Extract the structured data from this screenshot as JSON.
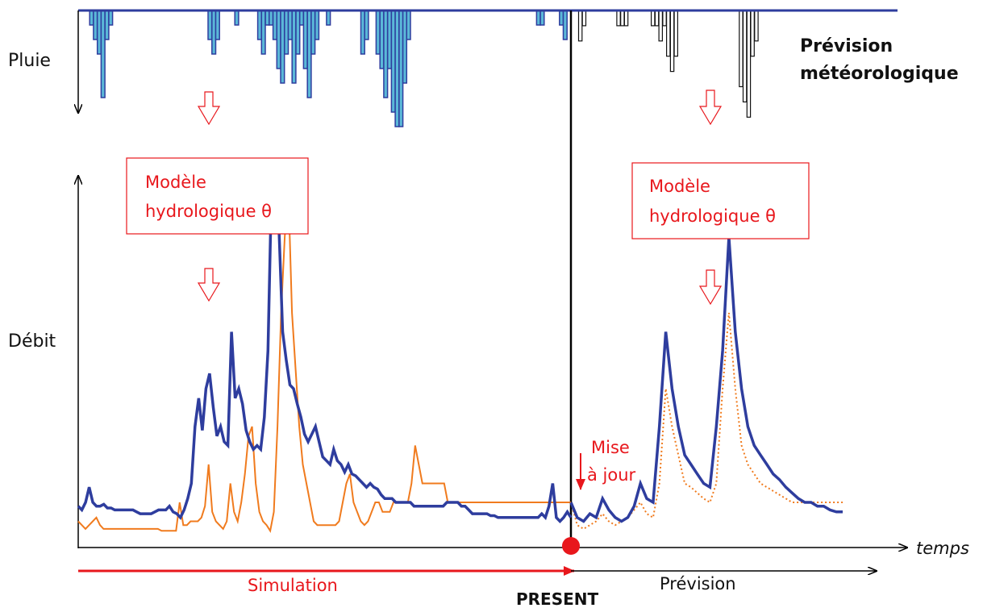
{
  "labels": {
    "pluie": "Pluie",
    "prevision_meteo_line1": "Prévision",
    "prevision_meteo_line2": "météorologique",
    "debit": "Débit",
    "modele_left_line1": "Modèle",
    "modele_left_line2": "hydrologique θ",
    "modele_right_line1": "Modèle",
    "modele_right_line2": "hydrologique θ",
    "mise_a_jour_line1": "Mise",
    "mise_a_jour_line2": "à jour",
    "temps": "temps",
    "simulation": "Simulation",
    "present": "PRESENT",
    "prevision": "Prévision"
  },
  "colors": {
    "observed": "#2e3d9e",
    "simulated": "#f07b1e",
    "rain_fill": "#5bb8d8",
    "rain_edge": "#2e3d9e",
    "red": "#e8171c",
    "axis": "#000000"
  },
  "chart_data": {
    "type": "line",
    "present_index": 128,
    "rain_observed": [
      0,
      0,
      0,
      1,
      2,
      3,
      6,
      2,
      1,
      0,
      0,
      0,
      0,
      0,
      0,
      0,
      0,
      0,
      0,
      0,
      0,
      0,
      0,
      0,
      0,
      0,
      0,
      0,
      0,
      0,
      0,
      0,
      0,
      0,
      2,
      3,
      2,
      0,
      0,
      0,
      0,
      1,
      0,
      0,
      0,
      0,
      0,
      2,
      3,
      1,
      1,
      2,
      4,
      5,
      3,
      2,
      5,
      3,
      1,
      4,
      6,
      3,
      2,
      0,
      0,
      1,
      0,
      0,
      0,
      0,
      0,
      0,
      0,
      0,
      3,
      2,
      0,
      0,
      3,
      4,
      6,
      4,
      7,
      8,
      8,
      5,
      2,
      0,
      0,
      0,
      0,
      0,
      0,
      0,
      0,
      0,
      0,
      0,
      0,
      0,
      0,
      0,
      0,
      0,
      0,
      0,
      0,
      0,
      0,
      0,
      0,
      0,
      0,
      0,
      0,
      0,
      0,
      0,
      0,
      0,
      1,
      1,
      0,
      0,
      0,
      0,
      1,
      2,
      0
    ],
    "rain_forecast": [
      0,
      0,
      2,
      1,
      0,
      0,
      0,
      0,
      0,
      0,
      0,
      0,
      1,
      1,
      1,
      0,
      0,
      0,
      0,
      0,
      0,
      1,
      1,
      2,
      1,
      3,
      4,
      3,
      0,
      0,
      0,
      0,
      0,
      0,
      0,
      0,
      0,
      0,
      0,
      0,
      0,
      0,
      0,
      0,
      5,
      6,
      7,
      3,
      2,
      0,
      0
    ],
    "observed": [
      18,
      16,
      20,
      28,
      20,
      18,
      18,
      19,
      17,
      17,
      16,
      16,
      16,
      16,
      16,
      16,
      15,
      14,
      14,
      14,
      14,
      15,
      16,
      16,
      16,
      18,
      15,
      14,
      12,
      16,
      22,
      30,
      60,
      75,
      58,
      80,
      88,
      70,
      55,
      60,
      52,
      50,
      110,
      75,
      80,
      72,
      58,
      52,
      48,
      50,
      48,
      65,
      100,
      190,
      190,
      165,
      110,
      95,
      82,
      80,
      72,
      65,
      56,
      52,
      56,
      60,
      52,
      44,
      42,
      40,
      48,
      42,
      40,
      36,
      40,
      35,
      34,
      32,
      30,
      28,
      30,
      28,
      27,
      24,
      22,
      22,
      22,
      20,
      20,
      20,
      20,
      20,
      18,
      18,
      18,
      18,
      18,
      18,
      18,
      18,
      18,
      20,
      20,
      20,
      20,
      18,
      18,
      16,
      14,
      14,
      14,
      14,
      14,
      13,
      13,
      12,
      12,
      12,
      12,
      12,
      12,
      12,
      12,
      12,
      12,
      12,
      12,
      14,
      12,
      18,
      30,
      12,
      10,
      12,
      15,
      12
    ],
    "simulated": [
      10,
      8,
      6,
      8,
      10,
      12,
      8,
      6,
      6,
      6,
      6,
      6,
      6,
      6,
      6,
      6,
      6,
      6,
      6,
      6,
      6,
      6,
      6,
      5,
      5,
      5,
      5,
      5,
      20,
      8,
      8,
      10,
      10,
      10,
      12,
      18,
      40,
      15,
      10,
      8,
      6,
      10,
      30,
      15,
      10,
      20,
      35,
      55,
      60,
      30,
      15,
      10,
      8,
      5,
      15,
      60,
      120,
      160,
      185,
      120,
      90,
      60,
      40,
      30,
      20,
      10,
      8,
      8,
      8,
      8,
      8,
      8,
      10,
      20,
      30,
      35,
      20,
      15,
      10,
      8,
      10,
      15,
      20,
      20,
      15,
      15,
      15,
      20,
      20,
      20,
      20,
      20,
      30,
      50,
      40,
      30,
      30,
      30,
      30,
      30,
      30,
      30,
      20,
      20,
      20,
      20,
      20,
      20,
      20,
      20,
      20,
      20,
      20,
      20,
      20,
      20,
      20,
      20,
      20,
      20,
      20,
      20,
      20,
      20,
      20,
      20,
      20,
      20,
      20,
      20,
      20,
      20,
      20,
      20,
      20,
      20,
      20
    ],
    "observed_forecast": [
      20,
      12,
      10,
      14,
      12,
      22,
      16,
      12,
      10,
      12,
      18,
      30,
      22,
      20,
      60,
      110,
      80,
      60,
      45,
      40,
      35,
      30,
      28,
      60,
      100,
      160,
      110,
      80,
      60,
      50,
      45,
      40,
      35,
      32,
      28,
      25,
      22,
      20,
      20,
      18,
      18,
      16,
      15,
      15
    ],
    "simulated_forecast": [
      20,
      8,
      6,
      8,
      10,
      14,
      10,
      8,
      10,
      12,
      16,
      20,
      14,
      12,
      30,
      80,
      60,
      45,
      30,
      28,
      25,
      22,
      20,
      30,
      80,
      120,
      80,
      50,
      40,
      35,
      30,
      28,
      26,
      24,
      22,
      20,
      20,
      20,
      20,
      20,
      20,
      20,
      20,
      20
    ]
  }
}
